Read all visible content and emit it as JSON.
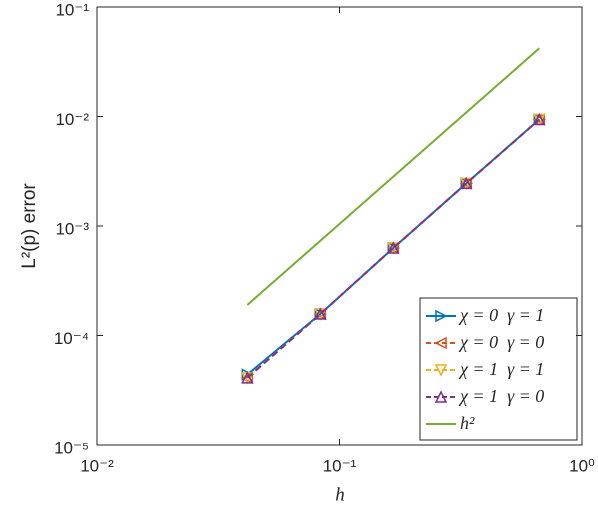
{
  "chart_data": {
    "type": "line",
    "log_x": true,
    "log_y": true,
    "x_label": "h",
    "y_label": "L²(p) error",
    "xlim": [
      0.01,
      1
    ],
    "xticks": [
      {
        "value": 0.01,
        "label": "10⁻²"
      },
      {
        "value": 0.1,
        "label": "10⁻¹"
      },
      {
        "value": 1,
        "label": "10⁰"
      }
    ],
    "ylim": [
      1e-05,
      0.1
    ],
    "yticks": [
      {
        "value": 1e-05,
        "label": "10⁻⁵"
      },
      {
        "value": 0.0001,
        "label": "10⁻⁴"
      },
      {
        "value": 0.001,
        "label": "10⁻³"
      },
      {
        "value": 0.01,
        "label": "10⁻²"
      },
      {
        "value": 0.1,
        "label": "10⁻¹"
      }
    ],
    "legend": "lower right",
    "series": [
      {
        "name": "χ = 0  γ = 1",
        "color": "#0072BD",
        "marker": "right",
        "dash": false,
        "x": [
          0.04167,
          0.08333,
          0.1667,
          0.3333,
          0.6667
        ],
        "values": [
          4.4e-05,
          0.000157,
          0.00063,
          0.00245,
          0.0094
        ]
      },
      {
        "name": "χ = 0  γ = 0",
        "color": "#D95319",
        "marker": "left",
        "dash": true,
        "x": [
          0.04167,
          0.08333,
          0.1667,
          0.3333,
          0.6667
        ],
        "values": [
          4.1e-05,
          0.000157,
          0.00063,
          0.00245,
          0.0094
        ]
      },
      {
        "name": "χ = 1  γ = 1",
        "color": "#EDB120",
        "marker": "down",
        "dash": true,
        "x": [
          0.04167,
          0.08333,
          0.1667,
          0.3333,
          0.6667
        ],
        "values": [
          4.1e-05,
          0.000157,
          0.00063,
          0.00245,
          0.0094
        ]
      },
      {
        "name": "χ = 1  γ = 0",
        "color": "#7E2F8E",
        "marker": "up",
        "dash": true,
        "x": [
          0.04167,
          0.08333,
          0.1667,
          0.3333,
          0.6667
        ],
        "values": [
          4.1e-05,
          0.000157,
          0.00063,
          0.00245,
          0.0094
        ]
      },
      {
        "name": "h²",
        "color": "#77AC30",
        "marker": null,
        "dash": false,
        "x": [
          0.04167,
          0.6667
        ],
        "values": [
          0.00019,
          0.042
        ]
      }
    ]
  }
}
